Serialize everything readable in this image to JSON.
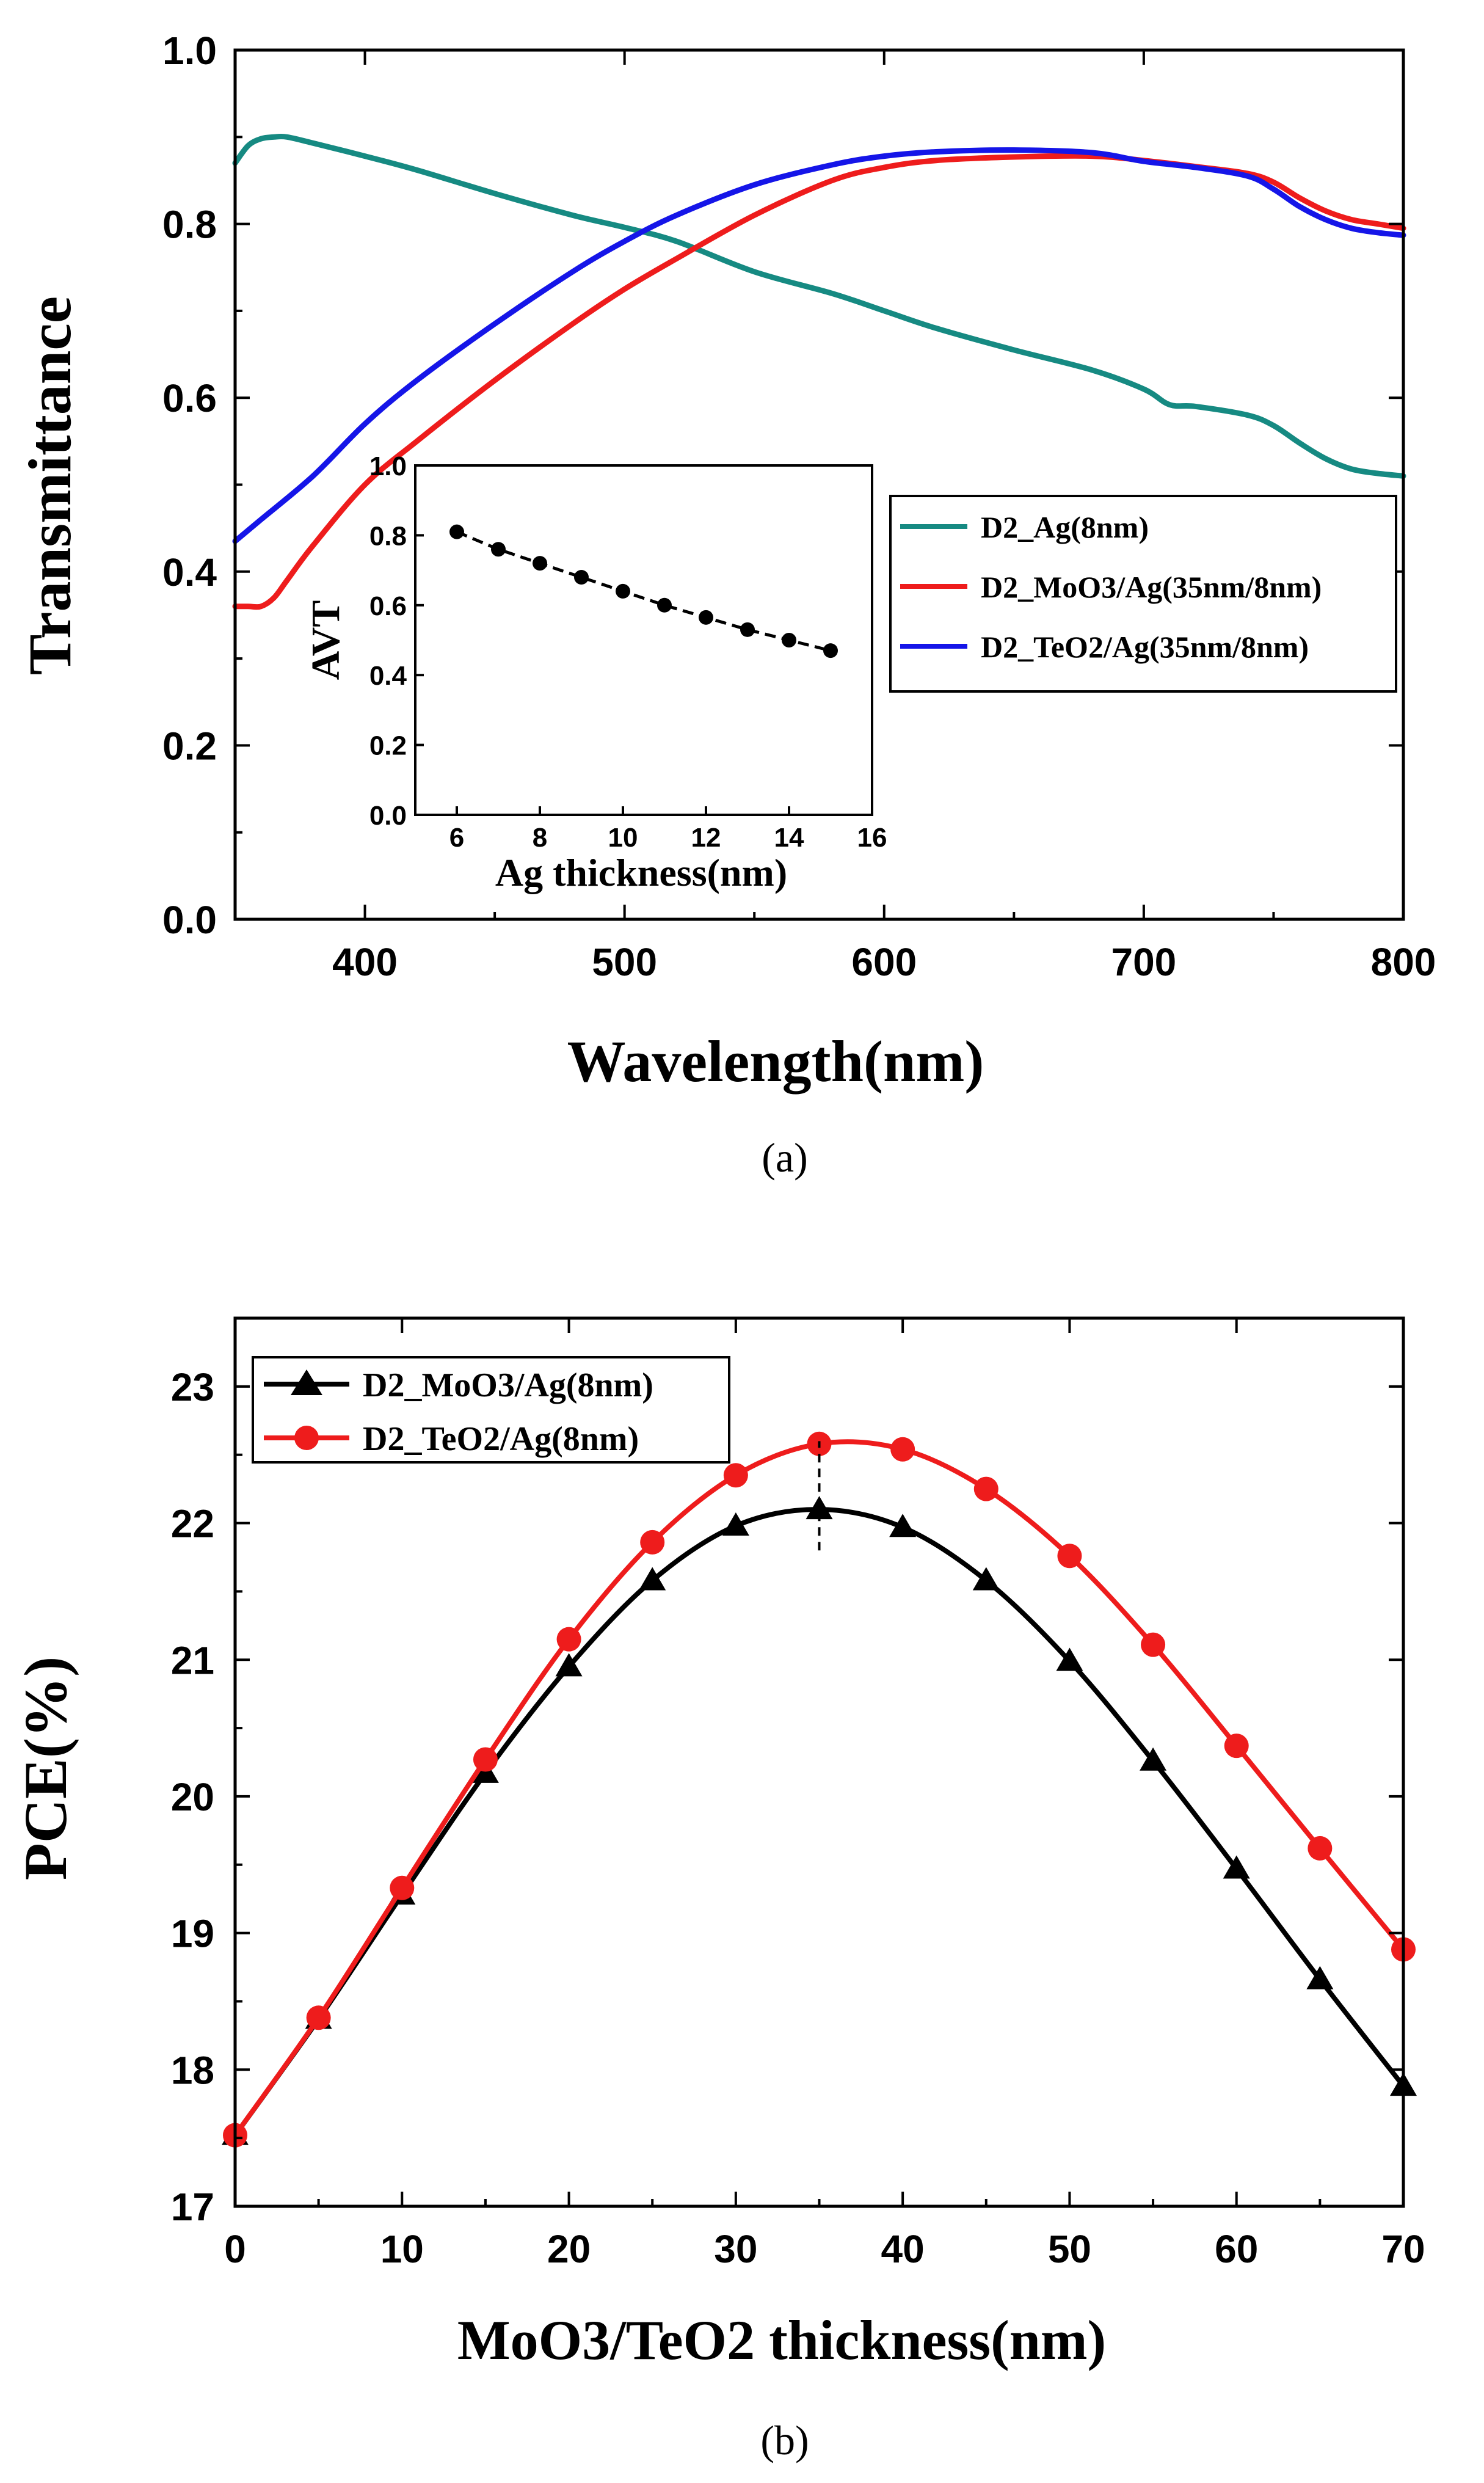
{
  "chart_data": [
    {
      "id": "a",
      "type": "line",
      "caption": "(a)",
      "xlabel": "Wavelength(nm)",
      "ylabel": "Transmittance",
      "xlim": [
        350,
        800
      ],
      "ylim": [
        0.0,
        1.0
      ],
      "xticks": [
        400,
        500,
        600,
        700,
        800
      ],
      "xtick_labels": [
        "400",
        "500",
        "600",
        "700",
        "800"
      ],
      "yticks": [
        0.0,
        0.2,
        0.4,
        0.6,
        0.8,
        1.0
      ],
      "ytick_labels": [
        "0.0",
        "0.2",
        "0.4",
        "0.6",
        "0.8",
        "1.0"
      ],
      "legend_position": "middle-right",
      "series": [
        {
          "name": "D2_Ag(8nm)",
          "color": "#168a82",
          "x": [
            350,
            355,
            360,
            365,
            370,
            380,
            400,
            420,
            450,
            480,
            500,
            520,
            550,
            580,
            600,
            620,
            650,
            680,
            700,
            710,
            720,
            740,
            750,
            760,
            770,
            780,
            790,
            800
          ],
          "y": [
            0.87,
            0.89,
            0.898,
            0.9,
            0.9,
            0.893,
            0.878,
            0.862,
            0.835,
            0.81,
            0.796,
            0.78,
            0.745,
            0.72,
            0.7,
            0.68,
            0.655,
            0.632,
            0.61,
            0.592,
            0.59,
            0.58,
            0.568,
            0.548,
            0.53,
            0.518,
            0.513,
            0.51
          ]
        },
        {
          "name": "D2_MoO3/Ag(35nm/8nm)",
          "color": "#ee1c1c",
          "x": [
            350,
            355,
            360,
            365,
            370,
            380,
            400,
            420,
            450,
            480,
            500,
            520,
            550,
            580,
            600,
            620,
            650,
            680,
            700,
            720,
            740,
            750,
            760,
            770,
            780,
            790,
            800
          ],
          "y": [
            0.36,
            0.36,
            0.36,
            0.37,
            0.39,
            0.43,
            0.5,
            0.55,
            0.62,
            0.685,
            0.725,
            0.76,
            0.81,
            0.85,
            0.865,
            0.873,
            0.877,
            0.878,
            0.873,
            0.866,
            0.858,
            0.848,
            0.83,
            0.815,
            0.805,
            0.8,
            0.795
          ]
        },
        {
          "name": "D2_TeO2/Ag(35nm/8nm)",
          "color": "#1515e8",
          "x": [
            350,
            360,
            380,
            400,
            420,
            450,
            480,
            500,
            520,
            550,
            580,
            600,
            620,
            650,
            680,
            700,
            720,
            740,
            750,
            760,
            770,
            780,
            790,
            800
          ],
          "y": [
            0.435,
            0.46,
            0.51,
            0.57,
            0.62,
            0.685,
            0.745,
            0.78,
            0.81,
            0.845,
            0.868,
            0.878,
            0.883,
            0.885,
            0.882,
            0.872,
            0.865,
            0.855,
            0.84,
            0.82,
            0.805,
            0.795,
            0.79,
            0.787
          ]
        }
      ],
      "inset": {
        "type": "scatter-line",
        "xlabel": "Ag thickness(nm)",
        "ylabel": "AVT",
        "xlim": [
          5,
          16
        ],
        "ylim": [
          0.0,
          1.0
        ],
        "xticks": [
          6,
          8,
          10,
          12,
          14,
          16
        ],
        "xtick_labels": [
          "6",
          "8",
          "10",
          "12",
          "14",
          "16"
        ],
        "yticks": [
          0.0,
          0.2,
          0.4,
          0.6,
          0.8,
          1.0
        ],
        "ytick_labels": [
          "0.0",
          "0.2",
          "0.4",
          "0.6",
          "0.8",
          "1.0"
        ],
        "x": [
          6,
          7,
          8,
          9,
          10,
          11,
          12,
          13,
          14,
          15
        ],
        "y": [
          0.81,
          0.76,
          0.72,
          0.68,
          0.64,
          0.6,
          0.565,
          0.53,
          0.5,
          0.47
        ],
        "color": "#000000"
      }
    },
    {
      "id": "b",
      "type": "line",
      "caption": "(b)",
      "xlabel": "MoO3/TeO2 thickness(nm)",
      "ylabel": "PCE(%)",
      "xlim": [
        0,
        70
      ],
      "ylim": [
        17,
        23.5
      ],
      "xticks": [
        0,
        10,
        20,
        30,
        40,
        50,
        60,
        70
      ],
      "xtick_labels": [
        "0",
        "10",
        "20",
        "30",
        "40",
        "50",
        "60",
        "70"
      ],
      "yticks": [
        17,
        18,
        19,
        20,
        21,
        22,
        23
      ],
      "ytick_labels": [
        "17",
        "18",
        "19",
        "20",
        "21",
        "22",
        "23"
      ],
      "legend_position": "top-left",
      "annotation": {
        "type": "dashed-vertical",
        "x": 35,
        "y_range": [
          21.8,
          22.6
        ]
      },
      "series": [
        {
          "name": "D2_MoO3/Ag(8nm)",
          "color": "#000000",
          "marker": "triangle",
          "x": [
            0,
            5,
            10,
            15,
            20,
            25,
            30,
            35,
            40,
            45,
            50,
            55,
            60,
            65,
            70
          ],
          "y": [
            17.52,
            18.37,
            19.28,
            20.17,
            20.95,
            21.58,
            21.98,
            22.1,
            21.97,
            21.58,
            20.99,
            20.26,
            19.47,
            18.66,
            17.88
          ]
        },
        {
          "name": "D2_TeO2/Ag(8nm)",
          "color": "#ee1c1c",
          "marker": "circle",
          "x": [
            0,
            5,
            10,
            15,
            20,
            25,
            30,
            35,
            40,
            45,
            50,
            55,
            60,
            65,
            70
          ],
          "y": [
            17.52,
            18.38,
            19.33,
            20.27,
            21.15,
            21.86,
            22.35,
            22.58,
            22.54,
            22.25,
            21.76,
            21.11,
            20.37,
            19.62,
            18.88
          ]
        }
      ]
    }
  ]
}
